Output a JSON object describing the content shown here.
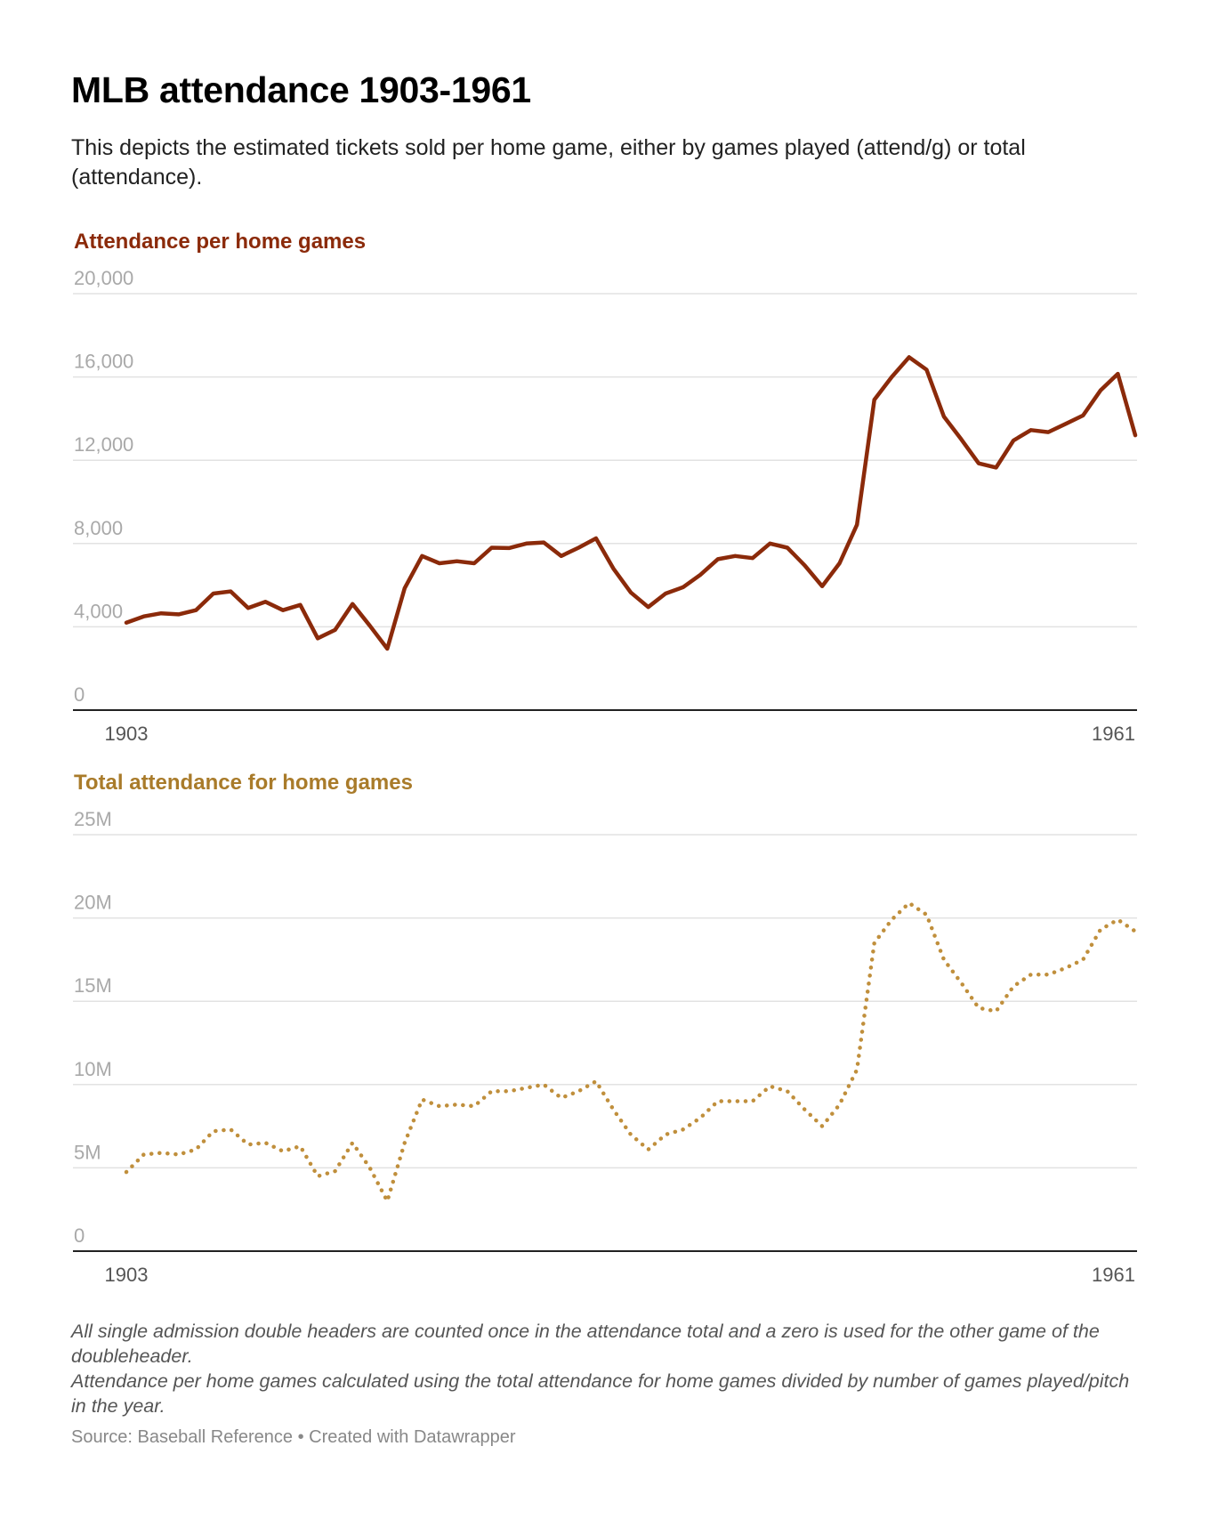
{
  "title": "MLB attendance 1903-1961",
  "description": "This depicts the estimated tickets sold per home game, either by games played (attend/g) or total (attendance).",
  "colors": {
    "per_game": "#8b2a0a",
    "total": "#c08f3c",
    "total_heading": "#a97b2a",
    "gridline": "#e2e2e2",
    "baseline": "#222222"
  },
  "chart_data": [
    {
      "type": "line",
      "title": "Attendance per home games",
      "x_start": 1903,
      "x_end": 1961,
      "x_tick_labels": [
        "1903",
        "1961"
      ],
      "ylim": [
        0,
        20000
      ],
      "y_tick_labels": [
        "20,000",
        "16,000",
        "12,000",
        "8,000",
        "4,000",
        "0"
      ],
      "y_ticks": [
        20000,
        16000,
        12000,
        8000,
        4000,
        0
      ],
      "grid": true,
      "line_style": "solid",
      "series": [
        {
          "x": [
            1903,
            1904,
            1905,
            1906,
            1907,
            1908,
            1909,
            1910,
            1911,
            1912,
            1913,
            1914,
            1915,
            1916,
            1917,
            1918,
            1919,
            1920,
            1921,
            1922,
            1923,
            1924,
            1925,
            1926,
            1927,
            1928,
            1929,
            1930,
            1931,
            1932,
            1933,
            1934,
            1935,
            1936,
            1937,
            1938,
            1939,
            1940,
            1941,
            1942,
            1943,
            1944,
            1945,
            1946,
            1947,
            1948,
            1949,
            1950,
            1951,
            1952,
            1953,
            1954,
            1955,
            1956,
            1957,
            1958,
            1959,
            1960,
            1961
          ],
          "values": [
            4200,
            4500,
            4650,
            4600,
            4800,
            5600,
            5700,
            4900,
            5200,
            4800,
            5050,
            3450,
            3850,
            5100,
            4050,
            2950,
            5850,
            7400,
            7050,
            7150,
            7050,
            7800,
            7780,
            8000,
            8050,
            7400,
            7800,
            8250,
            6800,
            5650,
            4950,
            5600,
            5900,
            6500,
            7250,
            7400,
            7300,
            8000,
            7800,
            6950,
            5950,
            7050,
            8900,
            14900,
            16000,
            16950,
            16350,
            14100,
            13000,
            11850,
            11650,
            12950,
            13450,
            13350,
            13750,
            14150,
            15350,
            16150,
            13200
          ]
        }
      ]
    },
    {
      "type": "line",
      "title": "Total attendance for home games",
      "x_start": 1903,
      "x_end": 1961,
      "x_tick_labels": [
        "1903",
        "1961"
      ],
      "ylim": [
        0,
        25000000
      ],
      "y_tick_labels": [
        "25M",
        "20M",
        "15M",
        "10M",
        "5M",
        "0"
      ],
      "y_ticks": [
        25000000,
        20000000,
        15000000,
        10000000,
        5000000,
        0
      ],
      "grid": true,
      "line_style": "dotted",
      "series": [
        {
          "x": [
            1903,
            1904,
            1905,
            1906,
            1907,
            1908,
            1909,
            1910,
            1911,
            1912,
            1913,
            1914,
            1915,
            1916,
            1917,
            1918,
            1919,
            1920,
            1921,
            1922,
            1923,
            1924,
            1925,
            1926,
            1927,
            1928,
            1929,
            1930,
            1931,
            1932,
            1933,
            1934,
            1935,
            1936,
            1937,
            1938,
            1939,
            1940,
            1941,
            1942,
            1943,
            1944,
            1945,
            1946,
            1947,
            1948,
            1949,
            1950,
            1951,
            1952,
            1953,
            1954,
            1955,
            1956,
            1957,
            1958,
            1959,
            1960,
            1961
          ],
          "values": [
            4750000,
            5800000,
            5900000,
            5800000,
            6100000,
            7200000,
            7300000,
            6400000,
            6500000,
            6000000,
            6300000,
            4500000,
            4800000,
            6500000,
            5000000,
            3000000,
            6500000,
            9100000,
            8700000,
            8800000,
            8700000,
            9600000,
            9600000,
            9800000,
            10000000,
            9200000,
            9600000,
            10200000,
            8500000,
            7000000,
            6100000,
            7000000,
            7300000,
            8000000,
            9000000,
            9000000,
            9000000,
            9900000,
            9600000,
            8500000,
            7500000,
            8800000,
            10900000,
            18500000,
            19900000,
            20900000,
            20200000,
            17500000,
            16100000,
            14600000,
            14400000,
            15900000,
            16600000,
            16600000,
            17000000,
            17500000,
            19300000,
            19900000,
            19200000
          ]
        }
      ]
    }
  ],
  "notes": [
    "All single admission double headers are counted once in the attendance total and a zero is used for the other game of the doubleheader.",
    "Attendance per home games calculated using the total attendance for home games divided by number of games played/pitch in the year."
  ],
  "source": "Source: Baseball Reference • Created with Datawrapper"
}
